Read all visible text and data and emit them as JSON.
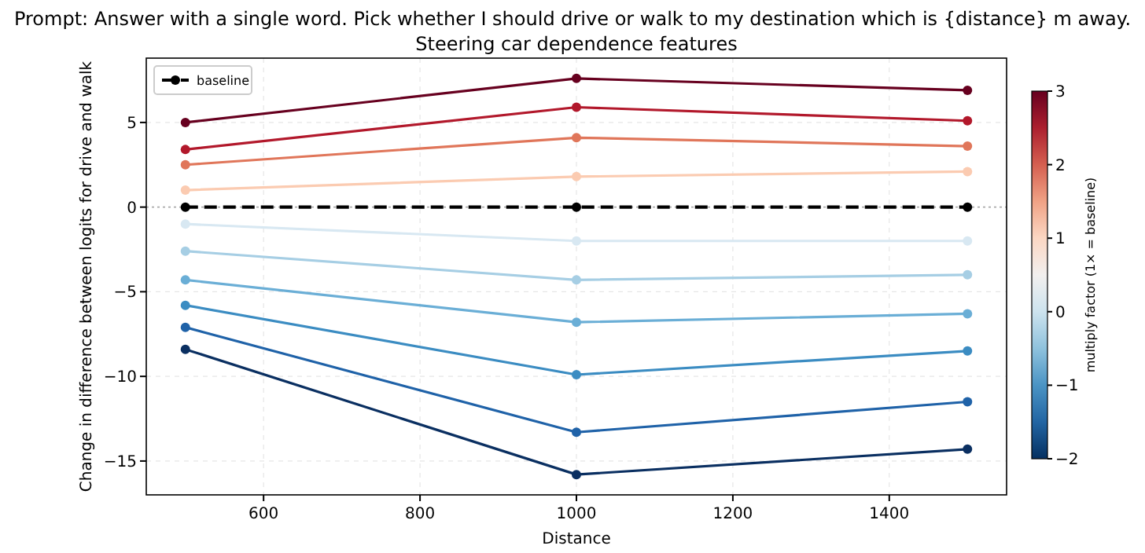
{
  "chart_data": {
    "type": "line",
    "title": "Prompt: Answer with a single word. Pick whether I should drive or walk to my destination which is {distance} m away.",
    "subtitle": "Steering car dependence features",
    "xlabel": "Distance",
    "ylabel": "Change in difference between logits for drive and walk",
    "clabel": "multiply factor  (1× = baseline)",
    "clim": [
      -2,
      3
    ],
    "cticks": [
      -2,
      -1,
      0,
      1,
      2,
      3
    ],
    "x": [
      500,
      1000,
      1500
    ],
    "xlim": [
      450,
      1550
    ],
    "xticks": [
      600,
      800,
      1000,
      1200,
      1400
    ],
    "ylim": [
      -17,
      8.8
    ],
    "yticks": [
      -15,
      -10,
      -5,
      0,
      5
    ],
    "grid": true,
    "legend": "top left",
    "marker": "circle",
    "ref_lines": [
      {
        "axis": "y",
        "value": 0,
        "color": "#aaaaaa",
        "line_style": "dotted"
      }
    ],
    "series": [
      {
        "color": "#67001f",
        "values": [
          5.0,
          7.6,
          6.9
        ]
      },
      {
        "color": "#b2182b",
        "values": [
          3.4,
          5.9,
          5.1
        ]
      },
      {
        "color": "#e0765a",
        "values": [
          2.5,
          4.1,
          3.6
        ]
      },
      {
        "color": "#fbcbb1",
        "values": [
          1.0,
          1.8,
          2.1
        ]
      },
      {
        "name": "baseline",
        "color": "#000000",
        "line_style": "dashed",
        "values": [
          0,
          0,
          0
        ]
      },
      {
        "color": "#d8e8f2",
        "values": [
          -1.0,
          -2.0,
          -2.0
        ]
      },
      {
        "color": "#a6cee4",
        "values": [
          -2.6,
          -4.3,
          -4.0
        ]
      },
      {
        "color": "#6aaed6",
        "values": [
          -4.3,
          -6.8,
          -6.3
        ]
      },
      {
        "color": "#3b8cc2",
        "values": [
          -5.8,
          -9.9,
          -8.5
        ]
      },
      {
        "color": "#1f62a8",
        "values": [
          -7.1,
          -13.3,
          -11.5
        ]
      },
      {
        "color": "#0a2f61",
        "values": [
          -8.4,
          -15.8,
          -14.3
        ]
      }
    ]
  }
}
